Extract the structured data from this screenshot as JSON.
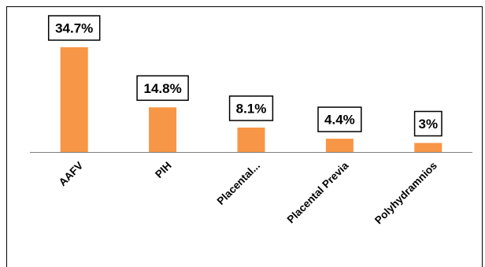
{
  "chart_data": {
    "type": "bar",
    "categories": [
      "AAFV",
      "PIH",
      "Placental...",
      "Placental Previa",
      "Polyhydramnios"
    ],
    "values": [
      34.7,
      14.8,
      8.1,
      4.4,
      3
    ],
    "data_labels": [
      "34.7%",
      "14.8%",
      "8.1%",
      "4.4%",
      "3%"
    ],
    "ylim": [
      0,
      34.7
    ],
    "grid": false,
    "legend": "none",
    "bar_color": "#F79646",
    "label_box_border": "#000000"
  }
}
